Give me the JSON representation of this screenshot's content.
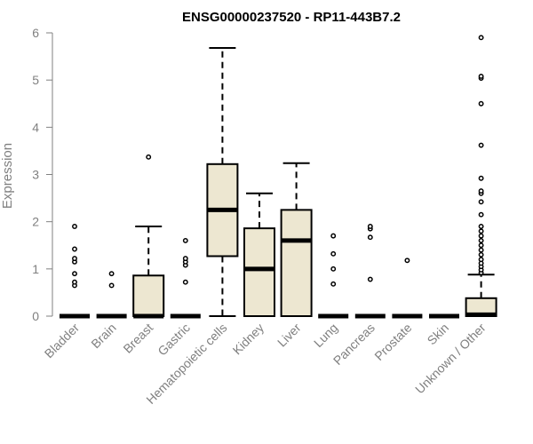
{
  "chart_data": {
    "type": "boxplot",
    "title": "ENSG00000237520 - RP11-443B7.2",
    "xlabel": "",
    "ylabel": "Expression",
    "ylim": [
      0,
      6
    ],
    "yticks": [
      0,
      1,
      2,
      3,
      4,
      5,
      6
    ],
    "grid": false,
    "legend": "none",
    "box_fill": "#ede7d1",
    "categories": [
      "Bladder",
      "Brain",
      "Breast",
      "Gastric",
      "Hematopoietic cells",
      "Kidney",
      "Liver",
      "Lung",
      "Pancreas",
      "Prostate",
      "Skin",
      "Unknown / Other"
    ],
    "boxes": [
      {
        "min": 0,
        "q1": 0,
        "median": 0,
        "q3": 0,
        "max": 0,
        "outliers": [
          0.65,
          0.72,
          0.9,
          1.15,
          1.22,
          1.42,
          1.9
        ]
      },
      {
        "min": 0,
        "q1": 0,
        "median": 0,
        "q3": 0,
        "max": 0,
        "outliers": [
          0.65,
          0.9
        ]
      },
      {
        "min": 0,
        "q1": 0,
        "median": 0,
        "q3": 0.86,
        "max": 1.9,
        "outliers": [
          3.37
        ]
      },
      {
        "min": 0,
        "q1": 0,
        "median": 0,
        "q3": 0,
        "max": 0,
        "outliers": [
          0.72,
          1.08,
          1.15,
          1.22,
          1.6
        ]
      },
      {
        "min": 0,
        "q1": 1.27,
        "median": 2.25,
        "q3": 3.22,
        "max": 5.68,
        "outliers": []
      },
      {
        "min": 0,
        "q1": 0,
        "median": 1.0,
        "q3": 1.86,
        "max": 2.6,
        "outliers": []
      },
      {
        "min": 0,
        "q1": 0,
        "median": 1.6,
        "q3": 2.25,
        "max": 3.24,
        "outliers": []
      },
      {
        "min": 0,
        "q1": 0,
        "median": 0,
        "q3": 0,
        "max": 0,
        "outliers": [
          0.68,
          1.0,
          1.32,
          1.7
        ]
      },
      {
        "min": 0,
        "q1": 0,
        "median": 0,
        "q3": 0,
        "max": 0,
        "outliers": [
          0.78,
          1.67,
          1.85,
          1.9
        ]
      },
      {
        "min": 0,
        "q1": 0,
        "median": 0,
        "q3": 0,
        "max": 0,
        "outliers": [
          1.18
        ]
      },
      {
        "min": 0,
        "q1": 0,
        "median": 0,
        "q3": 0,
        "max": 0,
        "outliers": []
      },
      {
        "min": 0,
        "q1": 0,
        "median": 0.03,
        "q3": 0.38,
        "max": 0.88,
        "outliers": [
          0.92,
          0.98,
          1.05,
          1.12,
          1.2,
          1.3,
          1.4,
          1.5,
          1.6,
          1.7,
          1.8,
          1.9,
          2.15,
          2.42,
          2.6,
          2.65,
          2.92,
          3.62,
          4.5,
          5.04,
          5.08,
          5.9
        ]
      }
    ]
  }
}
